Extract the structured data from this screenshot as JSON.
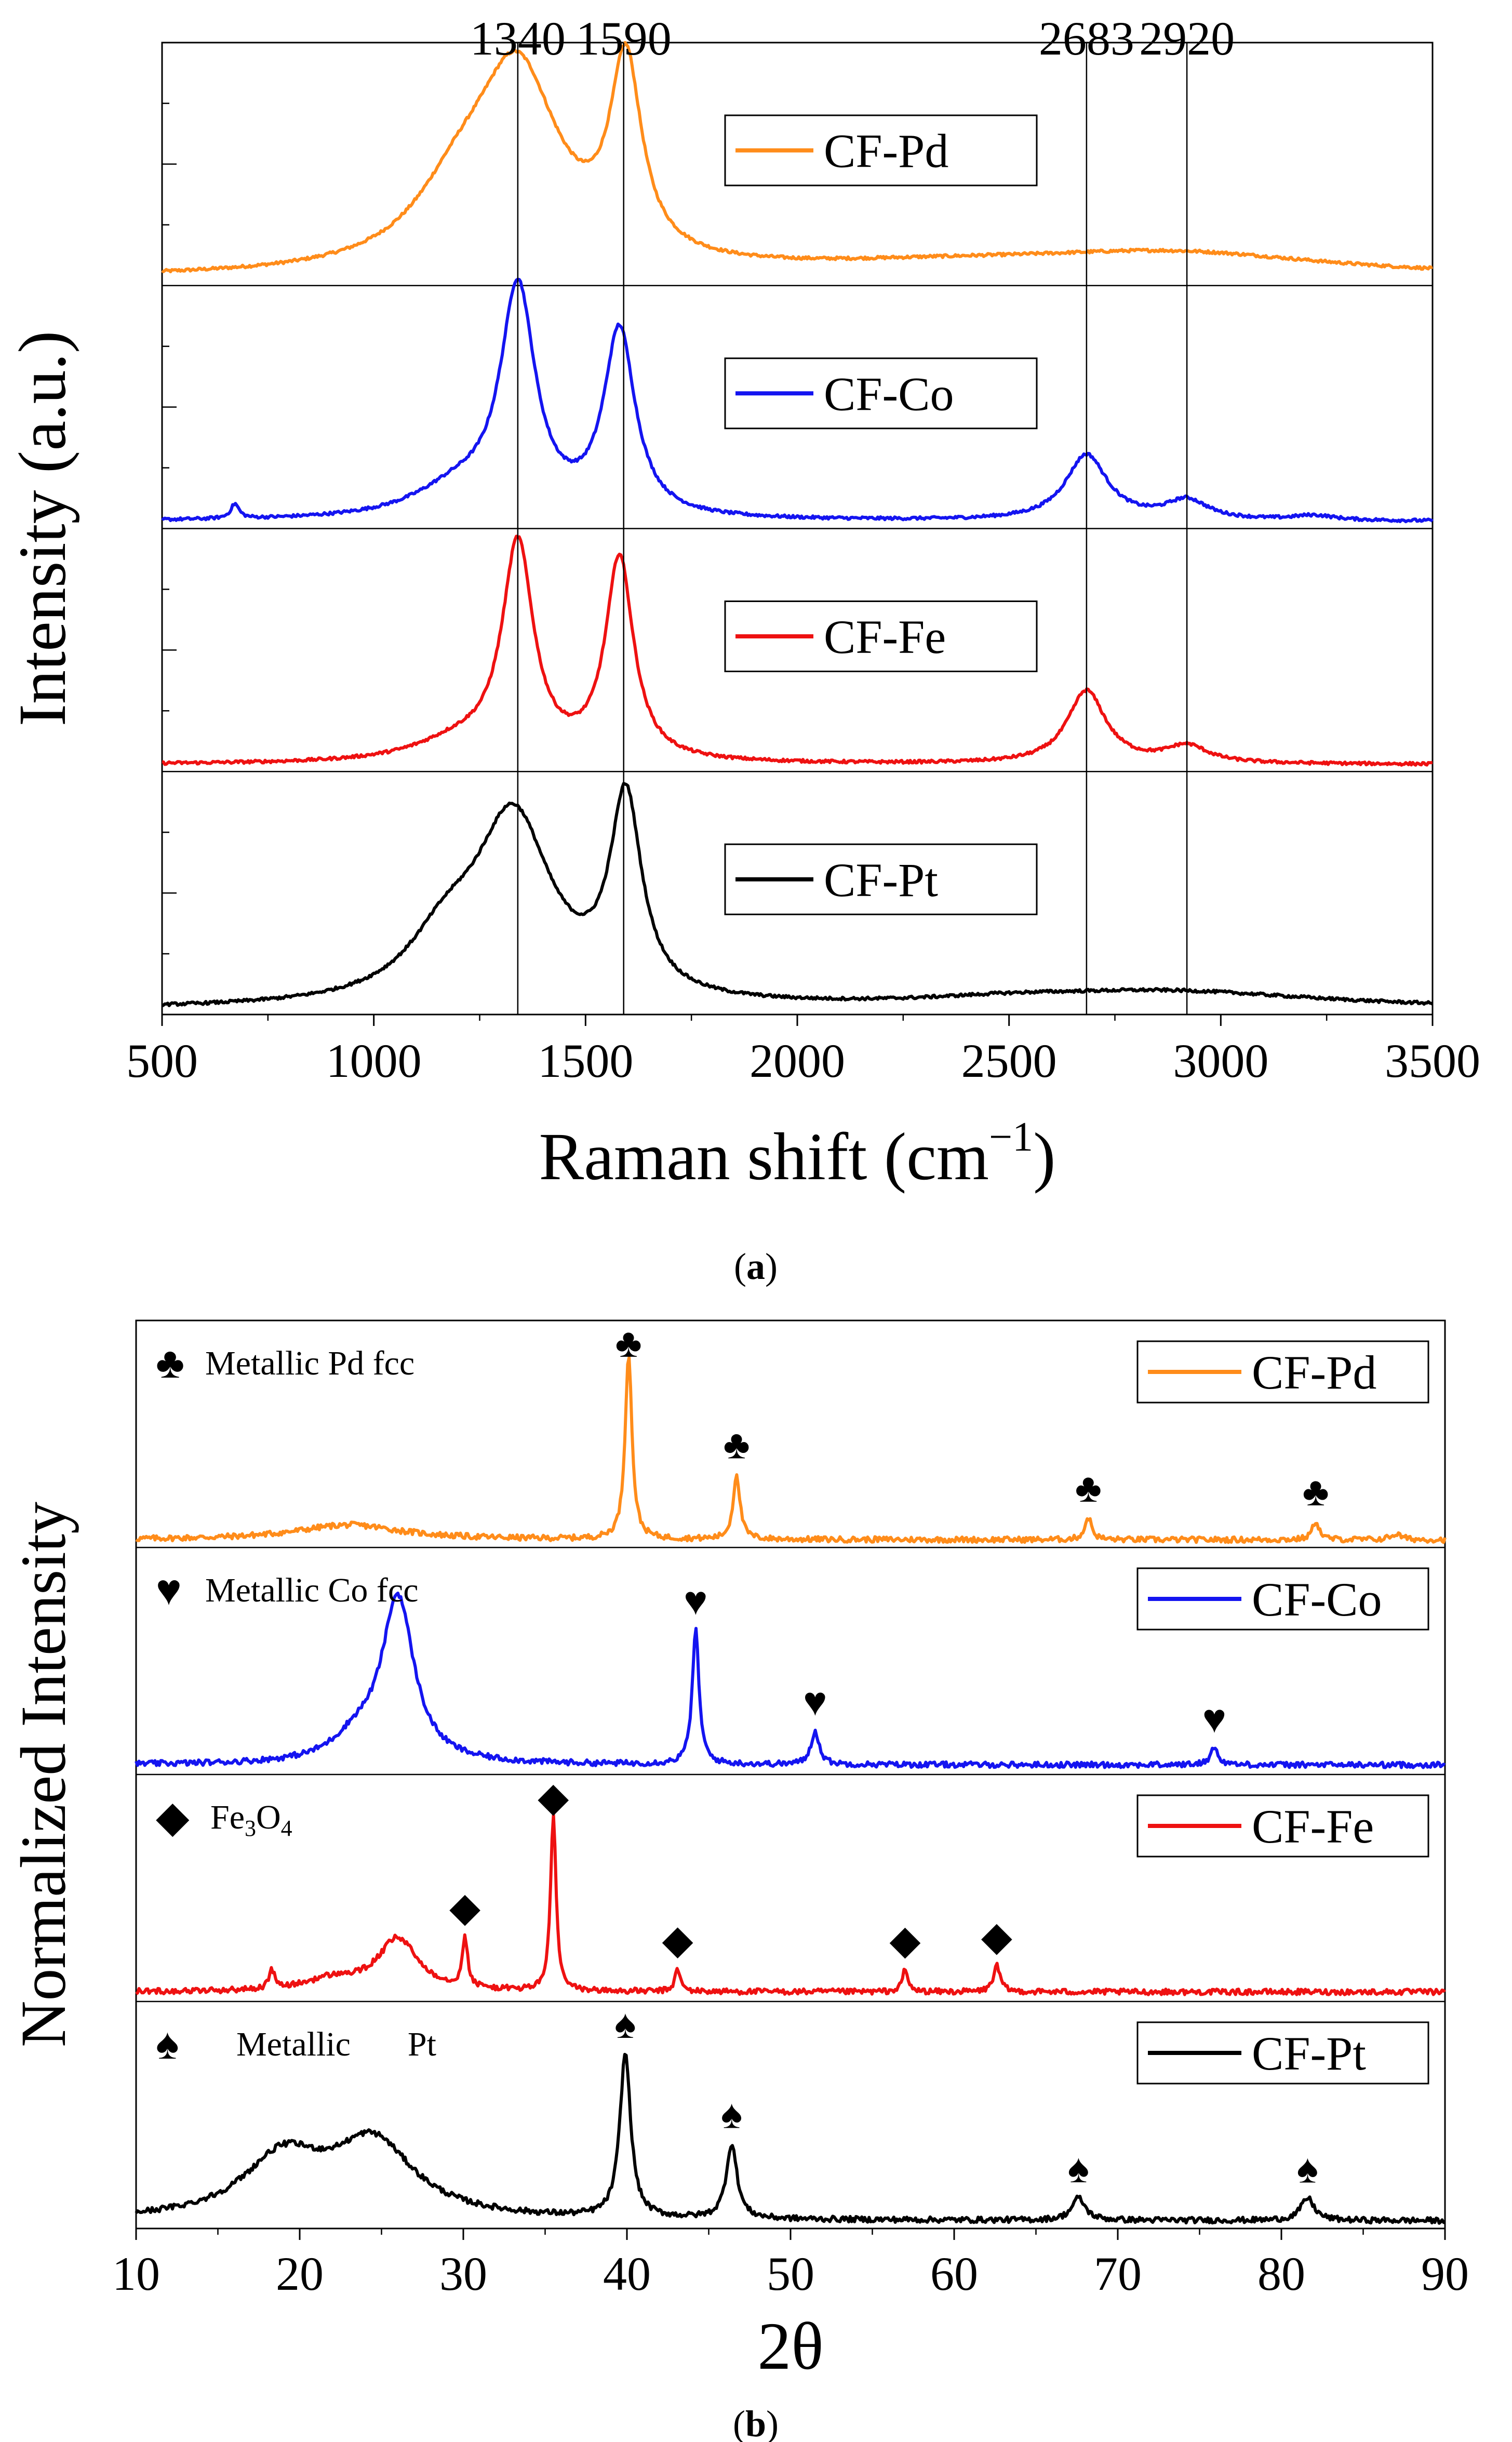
{
  "colors": {
    "CF-Pd": "#ff8c1a",
    "CF-Co": "#1414f0",
    "CF-Fe": "#ee1111",
    "CF-Pt": "#000000"
  },
  "chart_data": [
    {
      "type": "line",
      "panel_label": "a",
      "xlabel": "Raman shift (cm",
      "xlabel_sup": "−1",
      "xlabel_close": ")",
      "ylabel": "Intensity (a.u.)",
      "xlim": [
        500,
        3500
      ],
      "xticks": [
        "500",
        "1000",
        "1500",
        "2000",
        "2500",
        "3000",
        "3500"
      ],
      "grid": false,
      "legend_placement": "inside each stacked panel, center-right",
      "reference_lines": [
        {
          "x": 1340,
          "label": "1340"
        },
        {
          "x": 1590,
          "label": "1590"
        },
        {
          "x": 2683,
          "label": "2683"
        },
        {
          "x": 2920,
          "label": "2920"
        }
      ],
      "series": [
        {
          "name": "CF-Pd",
          "baseline": 0.02,
          "peaks": [
            [
              1340,
              0.78,
              120
            ],
            [
              1595,
              0.78,
              45
            ],
            [
              1200,
              0.25,
              130
            ],
            [
              2900,
              0.09,
              450
            ],
            [
              2350,
              0.04,
              500
            ]
          ]
        },
        {
          "name": "CF-Co",
          "baseline": 0.02,
          "peaks": [
            [
              1340,
              0.92,
              50
            ],
            [
              1580,
              0.76,
              45
            ],
            [
              1200,
              0.12,
              130
            ],
            [
              2683,
              0.27,
              60
            ],
            [
              2920,
              0.08,
              60
            ],
            [
              672,
              0.06,
              12
            ],
            [
              3220,
              0.02,
              60
            ]
          ]
        },
        {
          "name": "CF-Fe",
          "baseline": 0.02,
          "peaks": [
            [
              1340,
              0.88,
              45
            ],
            [
              1580,
              0.83,
              40
            ],
            [
              1200,
              0.08,
              130
            ],
            [
              2683,
              0.3,
              55
            ],
            [
              2920,
              0.07,
              60
            ]
          ]
        },
        {
          "name": "CF-Pt",
          "baseline": 0.01,
          "peaks": [
            [
              1330,
              0.75,
              110
            ],
            [
              1595,
              0.8,
              45
            ],
            [
              1170,
              0.22,
              110
            ],
            [
              2880,
              0.07,
              450
            ],
            [
              2500,
              0.02,
              250
            ]
          ]
        }
      ]
    },
    {
      "type": "line",
      "panel_label": "b",
      "xlabel": "2θ",
      "ylabel": "Normalized Intensity",
      "xlim": [
        10,
        90
      ],
      "xticks": [
        "10",
        "20",
        "30",
        "40",
        "50",
        "60",
        "70",
        "80",
        "90"
      ],
      "grid": false,
      "legend_placement": "top-right of each stacked panel",
      "series": [
        {
          "name": "CF-Pd",
          "annotation": "Metallic Pd fcc",
          "marker": "♣",
          "marker_positions": [
            40.1,
            46.7,
            68.2,
            82.1
          ],
          "baseline": 0.03,
          "peaks": [
            [
              40.1,
              1.0,
              0.25
            ],
            [
              46.7,
              0.35,
              0.25
            ],
            [
              68.2,
              0.12,
              0.25
            ],
            [
              82.1,
              0.1,
              0.25
            ],
            [
              23,
              0.08,
              4
            ],
            [
              87,
              0.03,
              0.4
            ]
          ]
        },
        {
          "name": "CF-Co",
          "annotation": "Metallic Co fcc",
          "marker": "♥",
          "marker_positions": [
            44.2,
            51.5,
            75.9
          ],
          "baseline": 0.04,
          "peaks": [
            [
              26,
              0.88,
              1.2
            ],
            [
              23.5,
              0.12,
              1.8
            ],
            [
              44.2,
              0.72,
              0.25
            ],
            [
              51.5,
              0.18,
              0.3
            ],
            [
              75.9,
              0.09,
              0.3
            ]
          ]
        },
        {
          "name": "CF-Fe",
          "annotation": "Fe",
          "annotation_sub1": "3",
          "annotation_mid": "O",
          "annotation_sub2": "4",
          "marker": "◆",
          "marker_positions": [
            30.1,
            35.5,
            43.1,
            57.0,
            62.6
          ],
          "baseline": 0.04,
          "peaks": [
            [
              35.5,
              0.95,
              0.2
            ],
            [
              30.1,
              0.26,
              0.2
            ],
            [
              43.1,
              0.12,
              0.2
            ],
            [
              57.0,
              0.12,
              0.2
            ],
            [
              62.6,
              0.14,
              0.25
            ],
            [
              26,
              0.28,
              1.5
            ],
            [
              18.3,
              0.1,
              0.2
            ],
            [
              22,
              0.06,
              2
            ]
          ]
        },
        {
          "name": "CF-Pt",
          "annotation": "Metallic",
          "annotation_tail": "Pt",
          "marker": "♠",
          "marker_positions": [
            39.9,
            46.4,
            67.6,
            81.6
          ],
          "baseline": 0.03,
          "peaks": [
            [
              39.9,
              0.88,
              0.4
            ],
            [
              46.4,
              0.4,
              0.4
            ],
            [
              67.6,
              0.12,
              0.5
            ],
            [
              81.6,
              0.12,
              0.5
            ],
            [
              19,
              0.32,
              3
            ],
            [
              24.5,
              0.4,
              3
            ]
          ]
        }
      ]
    }
  ]
}
